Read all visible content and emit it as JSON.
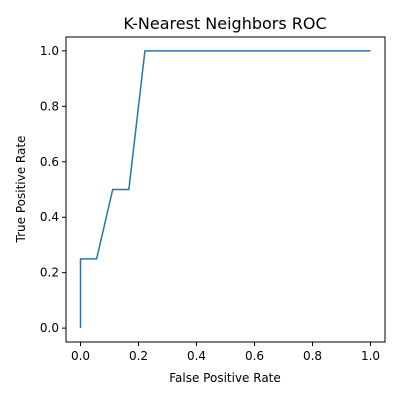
{
  "chart_data": {
    "type": "line",
    "title": "K-Nearest Neighbors ROC",
    "xlabel": "False Positive Rate",
    "ylabel": "True Positive Rate",
    "xlim": [
      -0.05,
      1.05
    ],
    "ylim": [
      -0.05,
      1.05
    ],
    "x_ticks": [
      "0.0",
      "0.2",
      "0.4",
      "0.6",
      "0.8",
      "1.0"
    ],
    "y_ticks": [
      "0.0",
      "0.2",
      "0.4",
      "0.6",
      "0.8",
      "1.0"
    ],
    "grid": false,
    "series": [
      {
        "color": "#1f77b4",
        "x": [
          0.0,
          0.0,
          0.0556,
          0.1111,
          0.1667,
          0.2222,
          1.0
        ],
        "y": [
          0.0,
          0.25,
          0.25,
          0.5,
          0.5,
          1.0,
          1.0
        ]
      }
    ]
  }
}
